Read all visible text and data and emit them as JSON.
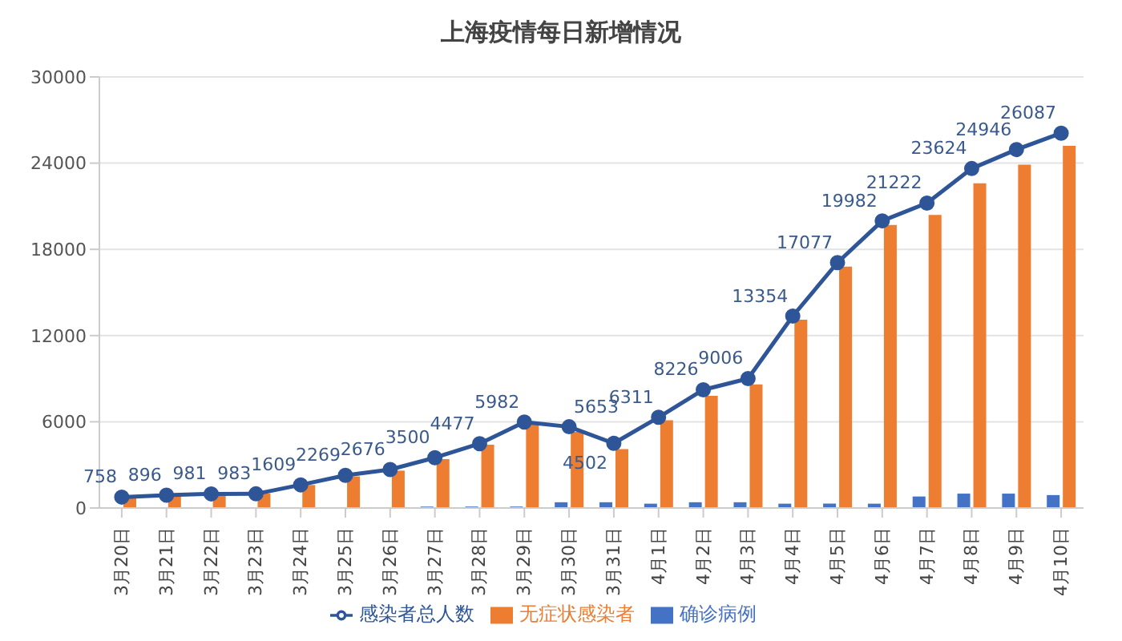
{
  "chart_data": {
    "type": "bar",
    "title": "上海疫情每日新增情况",
    "categories": [
      "3月20日",
      "3月21日",
      "3月22日",
      "3月23日",
      "3月24日",
      "3月25日",
      "3月26日",
      "3月27日",
      "3月28日",
      "3月29日",
      "3月30日",
      "3月31日",
      "4月1日",
      "4月2日",
      "4月3日",
      "4月4日",
      "4月5日",
      "4月6日",
      "4月7日",
      "4月8日",
      "4月9日",
      "4月10日"
    ],
    "series": [
      {
        "name": "确诊病例",
        "color": "#4472c4",
        "values": [
          0,
          0,
          0,
          0,
          0,
          0,
          0,
          100,
          100,
          100,
          400,
          400,
          300,
          400,
          400,
          300,
          300,
          300,
          800,
          1000,
          1000,
          900
        ]
      },
      {
        "name": "无症状感染者",
        "color": "#ed7d31",
        "values": [
          700,
          900,
          1000,
          1000,
          1600,
          2200,
          2600,
          3400,
          4400,
          5900,
          5300,
          4100,
          6100,
          7800,
          8600,
          13100,
          16800,
          19700,
          20400,
          22600,
          23900,
          25200
        ]
      },
      {
        "name": "感染者总人数",
        "type": "line",
        "color": "#2e5597",
        "marker": "circle",
        "values": [
          758,
          896,
          981,
          983,
          1609,
          2269,
          2676,
          3500,
          4477,
          5982,
          5653,
          4502,
          6311,
          8226,
          9006,
          13354,
          17077,
          19982,
          21222,
          23624,
          24946,
          26087
        ],
        "value_labels": [
          "758",
          "896",
          "981",
          "983",
          "1609",
          "2269",
          "2676",
          "3500",
          "4477",
          "5982",
          "5653",
          "4502",
          "6311",
          "8226",
          "9006",
          "13354",
          "17077",
          "19982",
          "21222",
          "23624",
          "24946",
          "26087"
        ]
      }
    ],
    "ylim": [
      0,
      30000
    ],
    "yticks": [
      0,
      6000,
      12000,
      18000,
      24000,
      30000
    ],
    "grid": "y",
    "legend": "bottom"
  }
}
